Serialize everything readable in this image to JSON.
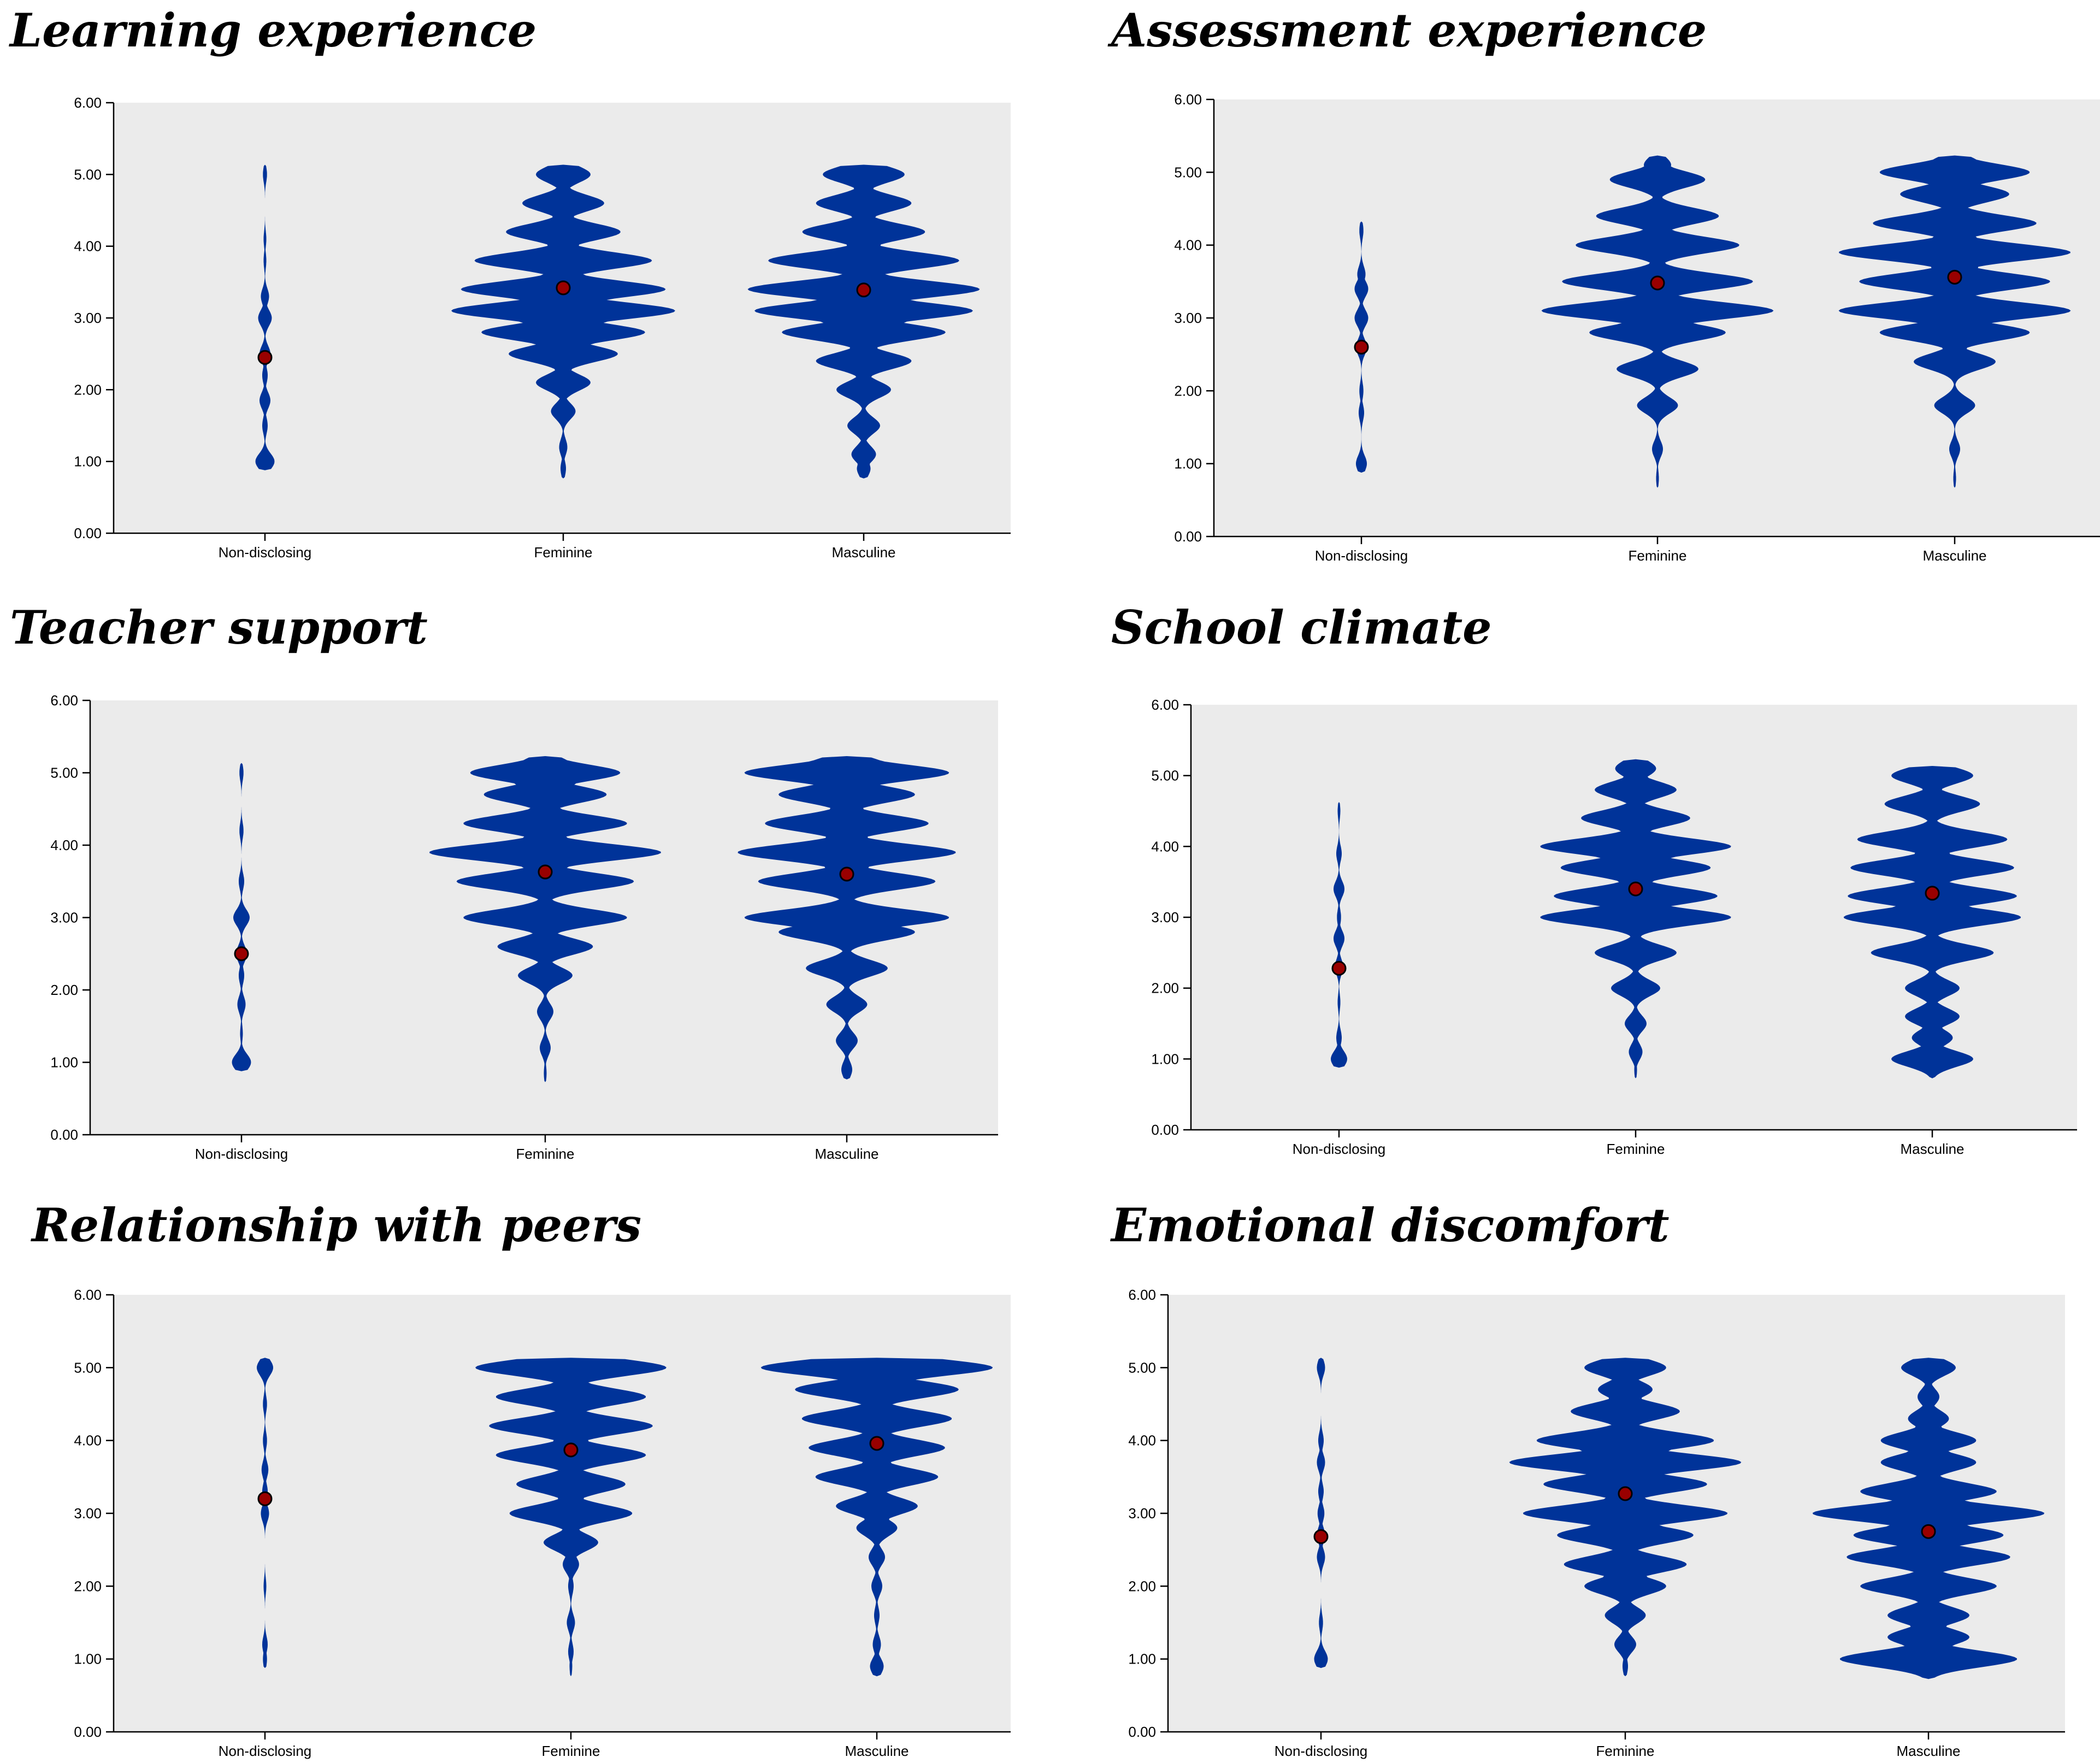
{
  "chart_data": [
    {
      "type": "violin",
      "title": "Learning experience",
      "categories": [
        "Non-disclosing",
        "Feminine",
        "Masculine"
      ],
      "ylim": [
        0,
        6
      ],
      "yticks": [
        "0.00",
        "1.00",
        "2.00",
        "3.00",
        "4.00",
        "5.00",
        "6.00"
      ],
      "means": [
        2.45,
        3.42,
        3.39
      ],
      "density": [
        [
          [
            1.0,
            0.07
          ],
          [
            1.5,
            0.02
          ],
          [
            1.85,
            0.04
          ],
          [
            2.2,
            0.02
          ],
          [
            2.5,
            0.04
          ],
          [
            3.0,
            0.05
          ],
          [
            3.3,
            0.03
          ],
          [
            3.8,
            0.01
          ],
          [
            4.1,
            0.01
          ],
          [
            5.0,
            0.015
          ]
        ],
        [
          [
            0.9,
            0.02
          ],
          [
            1.2,
            0.03
          ],
          [
            1.7,
            0.09
          ],
          [
            2.1,
            0.2
          ],
          [
            2.5,
            0.4
          ],
          [
            2.8,
            0.6
          ],
          [
            3.1,
            0.82
          ],
          [
            3.4,
            0.75
          ],
          [
            3.8,
            0.65
          ],
          [
            4.2,
            0.42
          ],
          [
            4.6,
            0.3
          ],
          [
            5.0,
            0.2
          ]
        ],
        [
          [
            0.9,
            0.05
          ],
          [
            1.1,
            0.09
          ],
          [
            1.5,
            0.12
          ],
          [
            2.0,
            0.2
          ],
          [
            2.4,
            0.35
          ],
          [
            2.8,
            0.6
          ],
          [
            3.1,
            0.8
          ],
          [
            3.4,
            0.85
          ],
          [
            3.8,
            0.7
          ],
          [
            4.2,
            0.45
          ],
          [
            4.6,
            0.35
          ],
          [
            5.0,
            0.3
          ]
        ]
      ]
    },
    {
      "type": "violin",
      "title": "Assessment experience",
      "categories": [
        "Non-disclosing",
        "Feminine",
        "Masculine"
      ],
      "ylim": [
        0,
        6
      ],
      "yticks": [
        "0.00",
        "1.00",
        "2.00",
        "3.00",
        "4.00",
        "5.00",
        "6.00"
      ],
      "means": [
        2.6,
        3.48,
        3.56
      ],
      "density": [
        [
          [
            1.0,
            0.04
          ],
          [
            1.7,
            0.02
          ],
          [
            2.0,
            0.015
          ],
          [
            2.6,
            0.04
          ],
          [
            3.0,
            0.05
          ],
          [
            3.4,
            0.05
          ],
          [
            3.6,
            0.03
          ],
          [
            4.2,
            0.015
          ]
        ],
        [
          [
            0.8,
            0.01
          ],
          [
            1.2,
            0.04
          ],
          [
            1.8,
            0.15
          ],
          [
            2.3,
            0.3
          ],
          [
            2.8,
            0.5
          ],
          [
            3.1,
            0.85
          ],
          [
            3.5,
            0.7
          ],
          [
            4.0,
            0.6
          ],
          [
            4.4,
            0.45
          ],
          [
            4.9,
            0.35
          ],
          [
            5.1,
            0.1
          ]
        ],
        [
          [
            0.8,
            0.01
          ],
          [
            1.2,
            0.04
          ],
          [
            1.8,
            0.15
          ],
          [
            2.4,
            0.3
          ],
          [
            2.8,
            0.55
          ],
          [
            3.1,
            0.85
          ],
          [
            3.5,
            0.7
          ],
          [
            3.9,
            0.85
          ],
          [
            4.3,
            0.6
          ],
          [
            4.7,
            0.4
          ],
          [
            5.0,
            0.55
          ],
          [
            5.1,
            0.2
          ]
        ]
      ]
    },
    {
      "type": "violin",
      "title": "Teacher support",
      "categories": [
        "Non-disclosing",
        "Feminine",
        "Masculine"
      ],
      "ylim": [
        0,
        6
      ],
      "yticks": [
        "0.00",
        "1.00",
        "2.00",
        "3.00",
        "4.00",
        "5.00",
        "6.00"
      ],
      "means": [
        2.5,
        3.63,
        3.6
      ],
      "density": [
        [
          [
            1.0,
            0.07
          ],
          [
            1.4,
            0.01
          ],
          [
            1.8,
            0.03
          ],
          [
            2.2,
            0.02
          ],
          [
            2.5,
            0.04
          ],
          [
            3.0,
            0.06
          ],
          [
            3.5,
            0.02
          ],
          [
            4.2,
            0.015
          ],
          [
            5.0,
            0.015
          ]
        ],
        [
          [
            0.85,
            0.01
          ],
          [
            1.2,
            0.04
          ],
          [
            1.7,
            0.06
          ],
          [
            2.2,
            0.2
          ],
          [
            2.6,
            0.35
          ],
          [
            3.0,
            0.6
          ],
          [
            3.5,
            0.65
          ],
          [
            3.9,
            0.85
          ],
          [
            4.3,
            0.6
          ],
          [
            4.7,
            0.45
          ],
          [
            5.0,
            0.55
          ],
          [
            5.1,
            0.2
          ]
        ],
        [
          [
            0.9,
            0.04
          ],
          [
            1.3,
            0.08
          ],
          [
            1.8,
            0.15
          ],
          [
            2.3,
            0.3
          ],
          [
            2.8,
            0.5
          ],
          [
            3.0,
            0.75
          ],
          [
            3.5,
            0.65
          ],
          [
            3.9,
            0.8
          ],
          [
            4.3,
            0.6
          ],
          [
            4.7,
            0.5
          ],
          [
            5.0,
            0.75
          ],
          [
            5.1,
            0.3
          ]
        ]
      ]
    },
    {
      "type": "violin",
      "title": "School climate",
      "categories": [
        "Non-disclosing",
        "Feminine",
        "Masculine"
      ],
      "ylim": [
        0,
        6
      ],
      "yticks": [
        "0.00",
        "1.00",
        "2.00",
        "3.00",
        "4.00",
        "5.00",
        "6.00"
      ],
      "means": [
        2.28,
        3.4,
        3.34
      ],
      "density": [
        [
          [
            1.0,
            0.06
          ],
          [
            1.3,
            0.02
          ],
          [
            1.8,
            0.01
          ],
          [
            2.3,
            0.03
          ],
          [
            2.7,
            0.04
          ],
          [
            3.0,
            0.015
          ],
          [
            3.4,
            0.04
          ],
          [
            3.9,
            0.02
          ],
          [
            4.5,
            0.01
          ]
        ],
        [
          [
            0.85,
            0.01
          ],
          [
            1.1,
            0.05
          ],
          [
            1.5,
            0.08
          ],
          [
            2.0,
            0.18
          ],
          [
            2.5,
            0.3
          ],
          [
            3.0,
            0.7
          ],
          [
            3.3,
            0.6
          ],
          [
            3.7,
            0.55
          ],
          [
            4.0,
            0.7
          ],
          [
            4.4,
            0.4
          ],
          [
            4.8,
            0.3
          ],
          [
            5.1,
            0.15
          ]
        ],
        [
          [
            0.85,
            0.01
          ],
          [
            1.0,
            0.3
          ],
          [
            1.3,
            0.15
          ],
          [
            1.6,
            0.2
          ],
          [
            2.0,
            0.2
          ],
          [
            2.5,
            0.45
          ],
          [
            3.0,
            0.65
          ],
          [
            3.3,
            0.62
          ],
          [
            3.7,
            0.6
          ],
          [
            4.1,
            0.55
          ],
          [
            4.6,
            0.35
          ],
          [
            5.0,
            0.3
          ]
        ]
      ]
    },
    {
      "type": "violin",
      "title": "Relationship with peers",
      "categories": [
        "Non-disclosing",
        "Feminine",
        "Masculine"
      ],
      "ylim": [
        0,
        6
      ],
      "yticks": [
        "0.00",
        "1.00",
        "2.00",
        "3.00",
        "4.00",
        "5.00",
        "6.00"
      ],
      "means": [
        3.2,
        3.87,
        3.96
      ],
      "density": [
        [
          [
            1.0,
            0.015
          ],
          [
            1.2,
            0.02
          ],
          [
            2.0,
            0.01
          ],
          [
            3.0,
            0.03
          ],
          [
            3.3,
            0.02
          ],
          [
            3.6,
            0.025
          ],
          [
            4.0,
            0.015
          ],
          [
            4.5,
            0.015
          ],
          [
            5.0,
            0.06
          ]
        ],
        [
          [
            0.9,
            0.01
          ],
          [
            1.1,
            0.02
          ],
          [
            1.5,
            0.03
          ],
          [
            2.0,
            0.02
          ],
          [
            2.3,
            0.06
          ],
          [
            2.6,
            0.2
          ],
          [
            3.0,
            0.45
          ],
          [
            3.4,
            0.4
          ],
          [
            3.8,
            0.55
          ],
          [
            4.2,
            0.6
          ],
          [
            4.6,
            0.55
          ],
          [
            5.0,
            0.7
          ]
        ],
        [
          [
            0.9,
            0.05
          ],
          [
            1.2,
            0.03
          ],
          [
            1.6,
            0.02
          ],
          [
            2.0,
            0.04
          ],
          [
            2.4,
            0.06
          ],
          [
            2.8,
            0.15
          ],
          [
            3.1,
            0.3
          ],
          [
            3.5,
            0.45
          ],
          [
            3.9,
            0.5
          ],
          [
            4.3,
            0.55
          ],
          [
            4.7,
            0.6
          ],
          [
            5.0,
            0.85
          ]
        ]
      ]
    },
    {
      "type": "violin",
      "title": "Emotional discomfort",
      "categories": [
        "Non-disclosing",
        "Feminine",
        "Masculine"
      ],
      "ylim": [
        0,
        6
      ],
      "yticks": [
        "0.00",
        "1.00",
        "2.00",
        "3.00",
        "4.00",
        "5.00",
        "6.00"
      ],
      "means": [
        2.68,
        3.27,
        2.75
      ],
      "density": [
        [
          [
            1.0,
            0.05
          ],
          [
            1.5,
            0.015
          ],
          [
            2.4,
            0.03
          ],
          [
            2.7,
            0.03
          ],
          [
            3.0,
            0.025
          ],
          [
            3.3,
            0.02
          ],
          [
            3.7,
            0.03
          ],
          [
            4.0,
            0.02
          ],
          [
            5.0,
            0.03
          ]
        ],
        [
          [
            0.9,
            0.02
          ],
          [
            1.2,
            0.08
          ],
          [
            1.6,
            0.15
          ],
          [
            2.0,
            0.3
          ],
          [
            2.3,
            0.45
          ],
          [
            2.7,
            0.5
          ],
          [
            3.0,
            0.75
          ],
          [
            3.4,
            0.6
          ],
          [
            3.7,
            0.85
          ],
          [
            4.0,
            0.65
          ],
          [
            4.4,
            0.4
          ],
          [
            4.7,
            0.2
          ],
          [
            5.0,
            0.3
          ]
        ],
        [
          [
            0.85,
            0.01
          ],
          [
            1.0,
            0.65
          ],
          [
            1.3,
            0.3
          ],
          [
            1.6,
            0.3
          ],
          [
            2.0,
            0.5
          ],
          [
            2.4,
            0.6
          ],
          [
            2.7,
            0.55
          ],
          [
            3.0,
            0.85
          ],
          [
            3.3,
            0.5
          ],
          [
            3.7,
            0.35
          ],
          [
            4.0,
            0.35
          ],
          [
            4.3,
            0.15
          ],
          [
            4.6,
            0.08
          ],
          [
            5.0,
            0.2
          ]
        ]
      ]
    }
  ],
  "colors": {
    "violin": "#003399",
    "mean_dot": "#990000",
    "plot_background": "#ebebeb"
  }
}
